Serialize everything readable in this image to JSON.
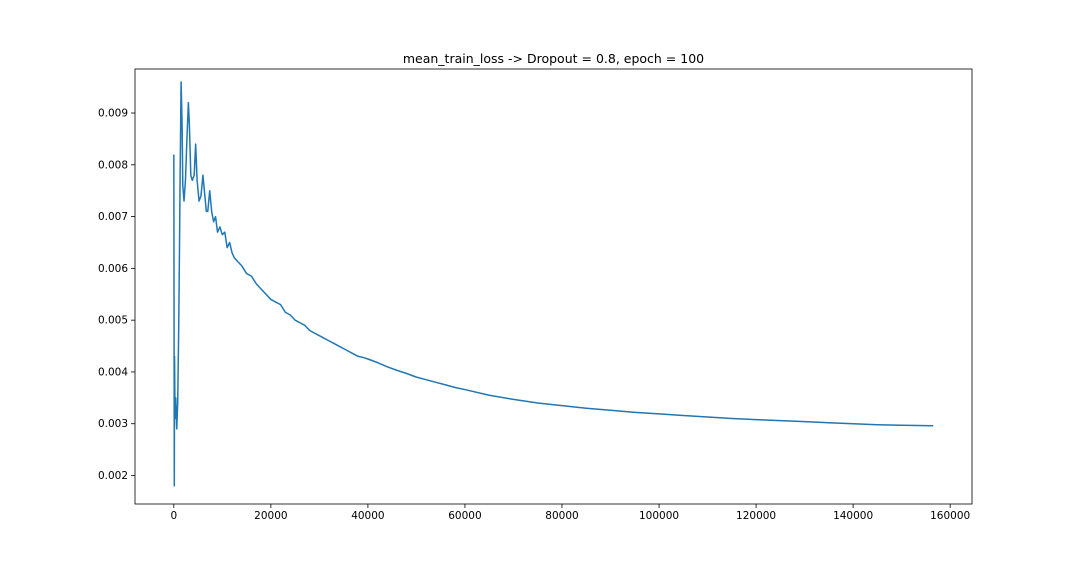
{
  "chart_data": {
    "type": "line",
    "title": "mean_train_loss -> Dropout = 0.8, epoch = 100",
    "xlabel": "",
    "ylabel": "",
    "xlim": [
      -8000,
      164500
    ],
    "ylim": [
      0.00145,
      0.00985
    ],
    "xticks": [
      0,
      20000,
      40000,
      60000,
      80000,
      100000,
      120000,
      140000,
      160000
    ],
    "xtick_labels": [
      "0",
      "20000",
      "40000",
      "60000",
      "80000",
      "100000",
      "120000",
      "140000",
      "160000"
    ],
    "yticks": [
      0.002,
      0.003,
      0.004,
      0.005,
      0.006,
      0.007,
      0.008,
      0.009
    ],
    "ytick_labels": [
      "0.002",
      "0.003",
      "0.004",
      "0.005",
      "0.006",
      "0.007",
      "0.008",
      "0.009"
    ],
    "grid": false,
    "color": "#1f77b4",
    "series": [
      {
        "x": [
          0,
          100,
          150,
          250,
          400,
          500,
          600,
          800,
          1000,
          1150,
          1300,
          1500,
          1700,
          1850,
          2100,
          2400,
          2700,
          3000,
          3200,
          3500,
          3800,
          4200,
          4500,
          4800,
          5200,
          5600,
          6000,
          6400,
          6700,
          7000,
          7400,
          7800,
          8200,
          8600,
          9000,
          9500,
          10000,
          10500,
          11000,
          11500,
          12000,
          12500,
          13000,
          13500,
          14000,
          15000,
          16000,
          17000,
          18000,
          19000,
          20000,
          21000,
          22000,
          23000,
          24000,
          25000,
          26000,
          27000,
          28000,
          29000,
          30000,
          31000,
          32000,
          33000,
          34000,
          35000,
          36000,
          37000,
          38000,
          39000,
          40000,
          42000,
          44000,
          46000,
          48000,
          50000,
          52000,
          54000,
          56000,
          58000,
          60000,
          65000,
          70000,
          75000,
          80000,
          85000,
          90000,
          95000,
          100000,
          105000,
          110000,
          115000,
          120000,
          125000,
          130000,
          135000,
          140000,
          145000,
          150000,
          156500
        ],
        "y": [
          0.0082,
          0.0018,
          0.0043,
          0.0031,
          0.0035,
          0.0032,
          0.0029,
          0.0034,
          0.0048,
          0.0062,
          0.0078,
          0.0096,
          0.0088,
          0.0076,
          0.0073,
          0.0077,
          0.0085,
          0.0092,
          0.0088,
          0.0078,
          0.0077,
          0.0078,
          0.0084,
          0.0077,
          0.0073,
          0.0074,
          0.0078,
          0.0074,
          0.0071,
          0.0071,
          0.0075,
          0.0071,
          0.0069,
          0.007,
          0.0067,
          0.0068,
          0.00665,
          0.0067,
          0.0064,
          0.0065,
          0.0063,
          0.0062,
          0.00615,
          0.0061,
          0.00605,
          0.0059,
          0.00585,
          0.0057,
          0.0056,
          0.0055,
          0.0054,
          0.00535,
          0.0053,
          0.00515,
          0.0051,
          0.005,
          0.00495,
          0.0049,
          0.0048,
          0.00475,
          0.0047,
          0.00465,
          0.0046,
          0.00455,
          0.0045,
          0.00445,
          0.0044,
          0.00435,
          0.0043,
          0.00428,
          0.00425,
          0.00418,
          0.0041,
          0.00403,
          0.00397,
          0.0039,
          0.00385,
          0.0038,
          0.00375,
          0.0037,
          0.00366,
          0.00355,
          0.00347,
          0.0034,
          0.00335,
          0.0033,
          0.00326,
          0.00322,
          0.00319,
          0.00316,
          0.00313,
          0.0031,
          0.00308,
          0.00306,
          0.00304,
          0.00302,
          0.003,
          0.00298,
          0.00297,
          0.00296
        ]
      }
    ]
  }
}
